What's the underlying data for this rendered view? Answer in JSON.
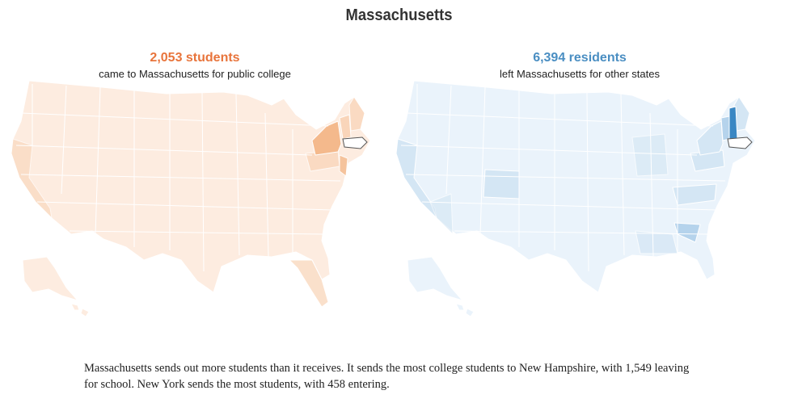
{
  "title": "Massachusetts",
  "colors": {
    "incoming_base": "#fdece0",
    "incoming_mid": "#f9d3b6",
    "incoming_strong": "#f4b98c",
    "incoming_text": "#e8743b",
    "outgoing_base": "#eaf3fb",
    "outgoing_mid": "#d4e6f4",
    "outgoing_strong": "#b5d3ec",
    "outgoing_max": "#3a87c3",
    "outgoing_text": "#4a8ec2",
    "home_state_fill": "#ffffff",
    "home_state_stroke": "#555555"
  },
  "incoming": {
    "headline": "2,053 students",
    "subtitle": "came to Massachusetts for public college"
  },
  "outgoing": {
    "headline": "6,394 residents",
    "subtitle": "left Massachusetts for other states"
  },
  "caption": "Massachusetts sends out more students than it receives. It sends the most college students to New Hampshire, with 1,549 leaving for school. New York sends the most students, with 458 entering."
}
